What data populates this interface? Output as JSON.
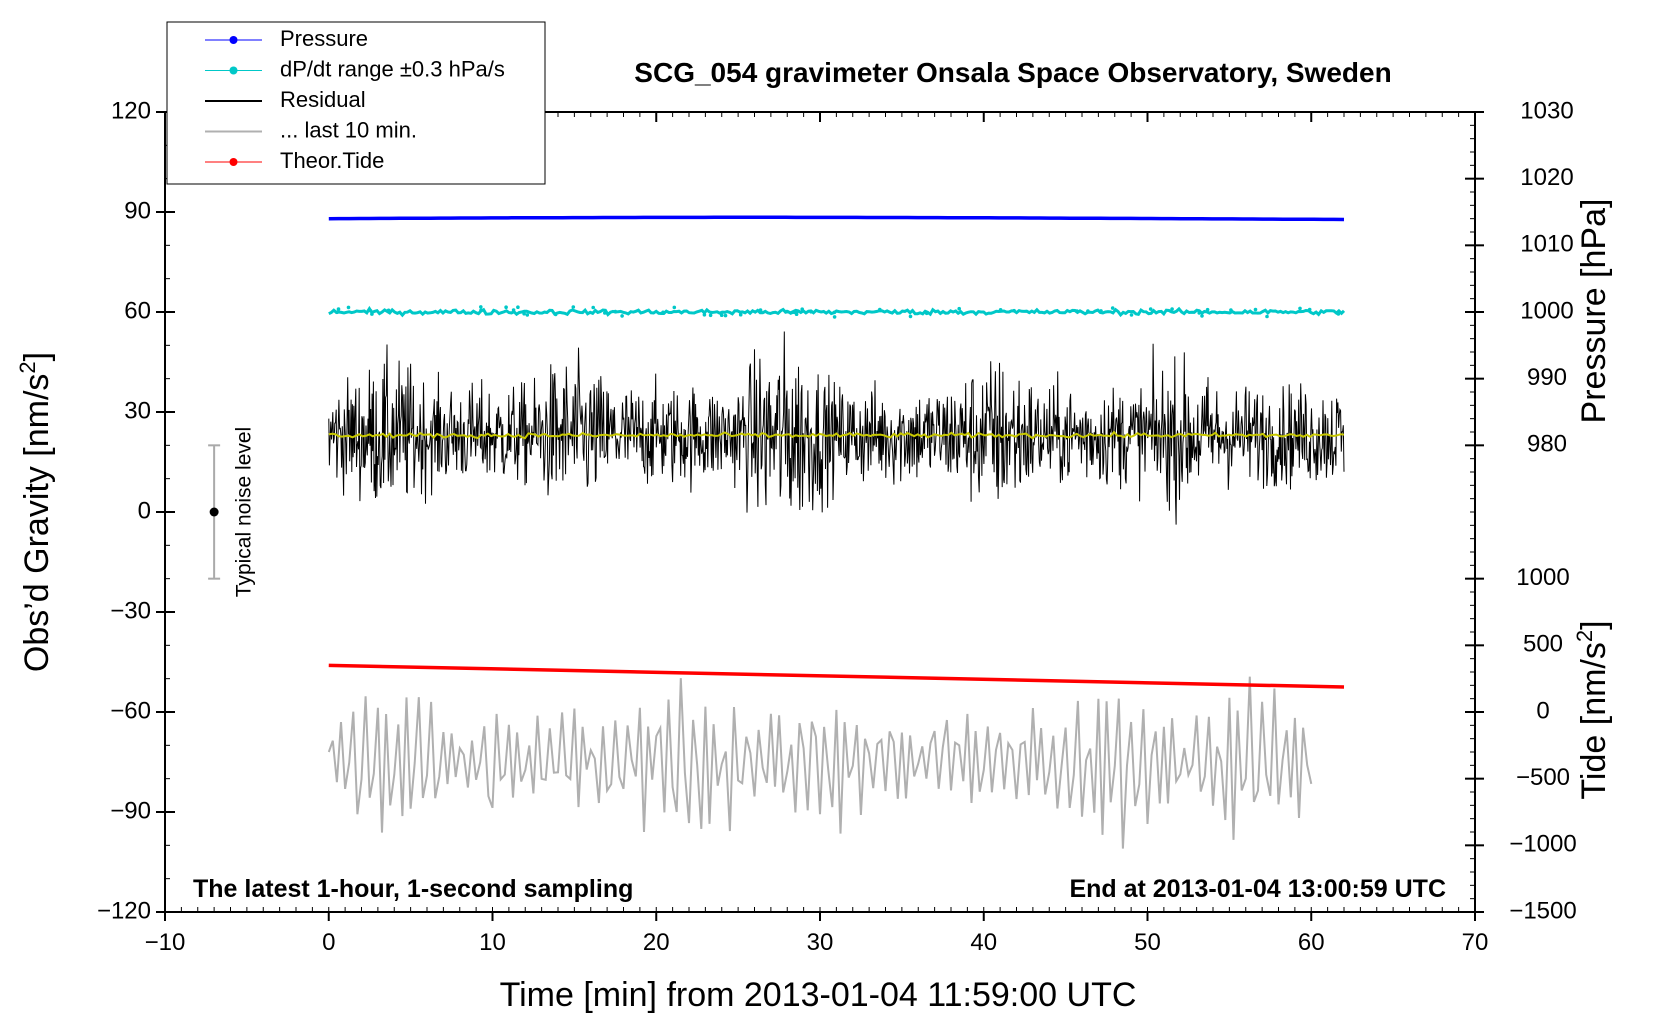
{
  "chart_data": {
    "type": "line",
    "title": "SCG_054 gravimeter Onsala Space Observatory, Sweden",
    "xlabel": "Time [min] from 2013-01-04 11:59:00 UTC",
    "ylabel_left": "Obs’d Gravity [nm/s",
    "ylabel_left_sup": "2",
    "ylabel_left_close": "]",
    "ylabel_right_pressure": "Pressure [hPa]",
    "ylabel_right_tide": "Tide [nm/s",
    "ylabel_right_tide_sup": "2",
    "ylabel_right_tide_close": "]",
    "xlim": [
      -10,
      70
    ],
    "ylim_left": [
      -120,
      120
    ],
    "x_ticks": [
      "−10",
      "0",
      "10",
      "20",
      "30",
      "40",
      "50",
      "60",
      "70"
    ],
    "y_left_ticks": [
      "120",
      "90",
      "60",
      "30",
      "0",
      "−30",
      "−60",
      "−90",
      "−120"
    ],
    "pressure_ticks": [
      "1030",
      "1020",
      "1010",
      "1000",
      "990",
      "980"
    ],
    "tide_ticks": [
      "1000",
      "500",
      "0",
      "−500",
      "−1000",
      "−1500"
    ],
    "annotation_left": "The latest 1-hour, 1-second sampling",
    "annotation_right": "End at 2013-01-04 13:00:59 UTC",
    "noise_label": "Typical noise level",
    "noise_bar": {
      "x": -7,
      "center": 0,
      "half_range": 20
    },
    "legend": [
      {
        "label": "Pressure",
        "color": "#0000ff",
        "marker": true
      },
      {
        "label": "dP/dt range ±0.3 hPa/s",
        "color": "#00c8c8",
        "marker": true
      },
      {
        "label": "Residual",
        "color": "#000000",
        "marker": false
      },
      {
        "label": "... last 10 min.",
        "color": "#b0b0b0",
        "marker": false
      },
      {
        "label": "Theor.Tide",
        "color": "#ff0000",
        "marker": true
      }
    ],
    "series": [
      {
        "name": "Pressure",
        "color": "#0000ff",
        "x_range": [
          0,
          62
        ],
        "level": 88,
        "note": "plotted near 88 on left axis (~1014 hPa)"
      },
      {
        "name": "dP/dt range ±0.3 hPa/s",
        "color": "#00c8c8",
        "x_range": [
          0,
          62
        ],
        "level": 60
      },
      {
        "name": "Residual",
        "color": "#000000",
        "x_range": [
          0,
          62
        ],
        "mean": 23,
        "spread": [
          -16,
          61
        ]
      },
      {
        "name": "Residual running mean",
        "color": "#c8c800",
        "x_range": [
          0,
          62
        ],
        "level": 23
      },
      {
        "name": "Theor.Tide",
        "color": "#ff0000",
        "x_range": [
          0,
          62
        ],
        "start": -46,
        "end": -52.5
      },
      {
        "name": "... last 10 min.",
        "color": "#b0b0b0",
        "x_range": [
          0,
          60
        ],
        "mean": -75,
        "spread": [
          -105,
          -44
        ]
      }
    ],
    "colors": {
      "pressure": "#0000ff",
      "dpdt": "#00c8c8",
      "residual": "#000000",
      "mean": "#c8c800",
      "tide": "#ff0000",
      "last10": "#b0b0b0"
    }
  }
}
